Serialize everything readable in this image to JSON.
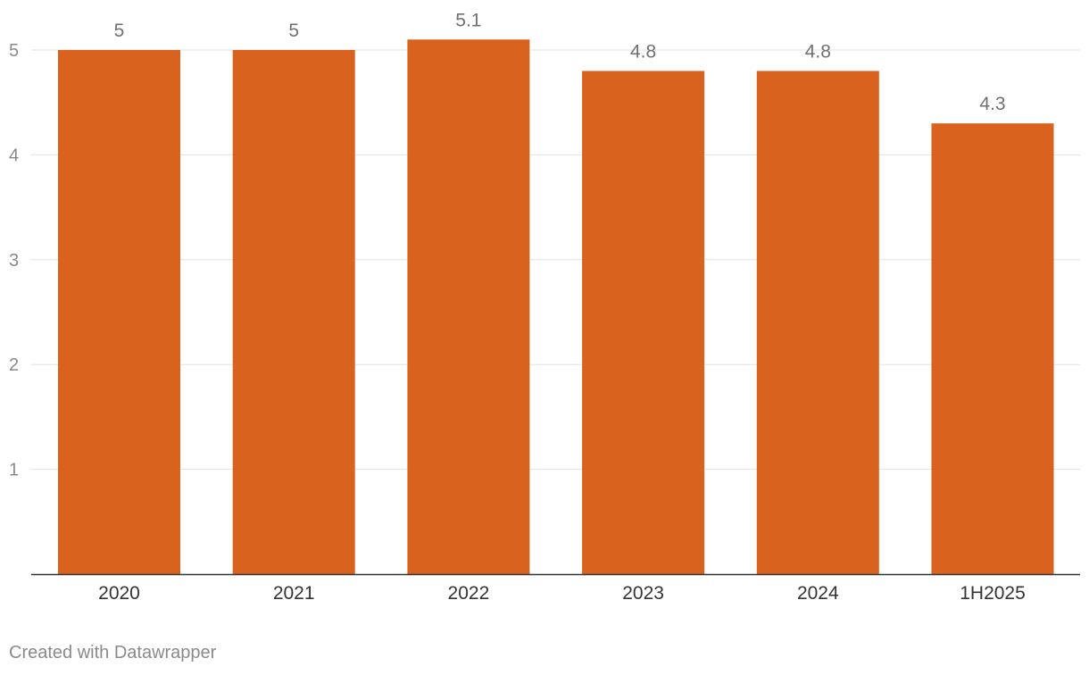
{
  "chart_data": {
    "type": "bar",
    "categories": [
      "2020",
      "2021",
      "2022",
      "2023",
      "2024",
      "1H2025"
    ],
    "values": [
      5,
      5,
      5.1,
      4.8,
      4.8,
      4.3
    ],
    "value_labels": [
      "5",
      "5",
      "5.1",
      "4.8",
      "4.8",
      "4.3"
    ],
    "title": "",
    "xlabel": "",
    "ylabel": "",
    "ylim": [
      0,
      5.1
    ],
    "yticks": [
      1,
      2,
      3,
      4,
      5
    ],
    "ytick_labels": [
      "1",
      "2",
      "3",
      "4",
      "5"
    ],
    "grid": true,
    "bar_color": "#d9621f",
    "legend": "none"
  },
  "footer": {
    "credit": "Created with Datawrapper"
  }
}
